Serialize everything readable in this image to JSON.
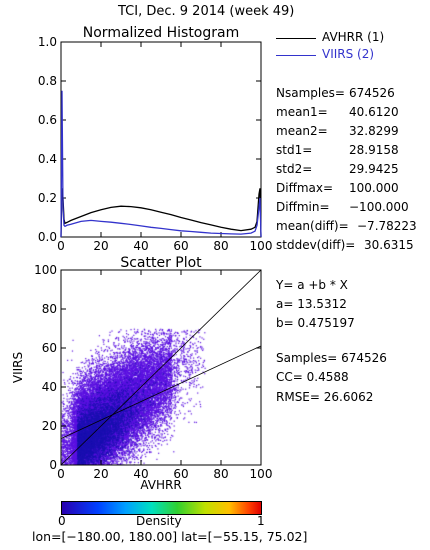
{
  "title": "TCI,  Dec. 9 2014 (week 49)",
  "legend": [
    {
      "label": "AVHRR (1)",
      "color": "#000000"
    },
    {
      "label": "VIIRS (2)",
      "color": "#3333cc"
    }
  ],
  "stats": [
    {
      "name": "Nsamples=",
      "value": "674526"
    },
    {
      "name": "mean1=",
      "value": "40.6120"
    },
    {
      "name": "mean2=",
      "value": "32.8299"
    },
    {
      "name": "std1=",
      "value": "28.9158"
    },
    {
      "name": "std2=",
      "value": "29.9425"
    },
    {
      "name": "Diffmax=",
      "value": "100.000"
    },
    {
      "name": "Diffmin=",
      "value": "−100.000"
    },
    {
      "name": "mean(diff)=",
      "value": "−7.78223"
    },
    {
      "name": "stddev(diff)=",
      "value": "30.6315"
    }
  ],
  "regression": {
    "formula": "Y= a +b * X",
    "a": "a= 13.5312",
    "b": "b= 0.475197",
    "samples": "Samples= 674526",
    "cc": "CC=  0.4588",
    "rmse": "RMSE= 26.6062"
  },
  "colorbar": {
    "label": "Density",
    "min": "0",
    "max": "1"
  },
  "footer": "lon=[−180.00, 180.00] lat=[−55.15, 75.02]",
  "chart_data": [
    {
      "type": "line",
      "title": "Normalized Histogram",
      "xlim": [
        0,
        100
      ],
      "ylim": [
        0,
        1.0
      ],
      "xticks": [
        "0",
        "20",
        "40",
        "60",
        "80",
        "100"
      ],
      "yticks": [
        "0.0",
        "0.2",
        "0.4",
        "0.6",
        "0.8",
        "1.0"
      ],
      "xtick_values": [
        0,
        20,
        40,
        60,
        80,
        100
      ],
      "ytick_values": [
        0,
        0.2,
        0.4,
        0.6,
        0.8,
        1.0
      ],
      "series": [
        {
          "name": "AVHRR (1)",
          "color": "#000000",
          "x": [
            0,
            0.5,
            1,
            1.5,
            2,
            3,
            5,
            10,
            15,
            20,
            25,
            30,
            35,
            40,
            45,
            50,
            55,
            60,
            65,
            70,
            75,
            80,
            85,
            90,
            95,
            97,
            98,
            99,
            99.5,
            100
          ],
          "y": [
            0.0,
            0.25,
            0.2,
            0.09,
            0.07,
            0.075,
            0.085,
            0.105,
            0.125,
            0.14,
            0.152,
            0.158,
            0.156,
            0.15,
            0.14,
            0.127,
            0.115,
            0.1,
            0.087,
            0.074,
            0.062,
            0.05,
            0.04,
            0.033,
            0.04,
            0.05,
            0.08,
            0.22,
            0.25,
            0.0
          ]
        },
        {
          "name": "VIIRS (2)",
          "color": "#3333cc",
          "x": [
            0,
            0.5,
            1,
            1.5,
            2,
            3,
            5,
            10,
            15,
            20,
            25,
            30,
            35,
            40,
            45,
            50,
            55,
            60,
            65,
            70,
            75,
            80,
            85,
            90,
            95,
            97,
            98,
            99,
            99.5,
            100
          ],
          "y": [
            0.0,
            0.75,
            0.15,
            0.06,
            0.055,
            0.06,
            0.065,
            0.08,
            0.085,
            0.08,
            0.076,
            0.07,
            0.064,
            0.057,
            0.05,
            0.044,
            0.038,
            0.032,
            0.028,
            0.024,
            0.02,
            0.018,
            0.016,
            0.015,
            0.02,
            0.03,
            0.06,
            0.15,
            0.2,
            0.0
          ]
        }
      ]
    },
    {
      "type": "scatter",
      "title": "Scatter Plot",
      "xlabel": "AVHRR",
      "ylabel": "VIIRS",
      "xlim": [
        0,
        100
      ],
      "ylim": [
        0,
        100
      ],
      "xticks": [
        "0",
        "20",
        "40",
        "60",
        "80",
        "100"
      ],
      "yticks": [
        "0",
        "20",
        "40",
        "60",
        "80",
        "100"
      ],
      "xtick_values": [
        0,
        20,
        40,
        60,
        80,
        100
      ],
      "ytick_values": [
        0,
        20,
        40,
        60,
        80,
        100
      ],
      "regression_line": {
        "a": 13.5312,
        "b": 0.475197
      },
      "samples": 674526,
      "density_color": "#5a10e0"
    }
  ]
}
